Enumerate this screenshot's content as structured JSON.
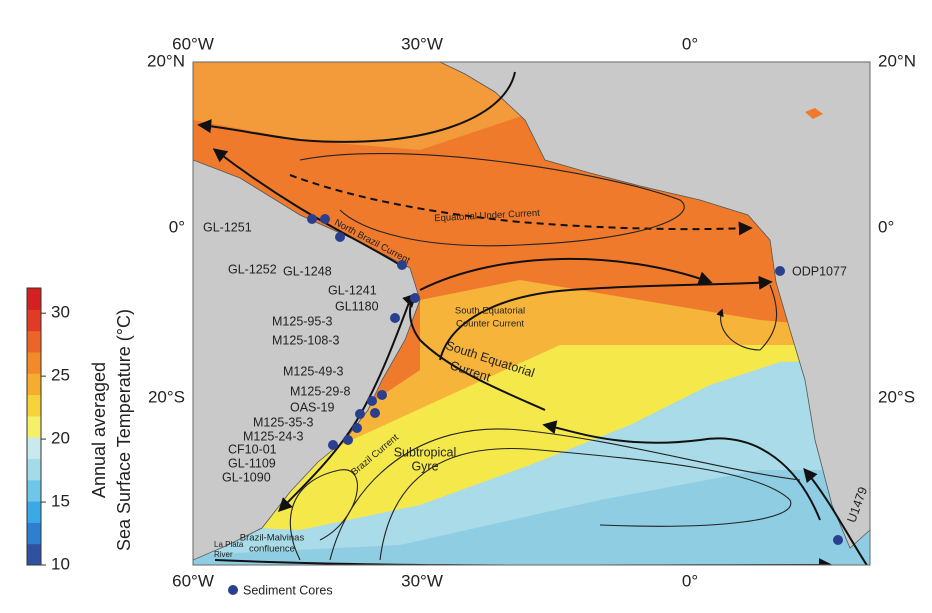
{
  "map": {
    "lon_labels_top": [
      "60°W",
      "30°W",
      "0°"
    ],
    "lon_labels_bottom": [
      "60°W",
      "30°W",
      "0°"
    ],
    "lat_labels_left": [
      "20°N",
      "0°",
      "20°S"
    ],
    "lat_labels_right": [
      "20°N",
      "0°",
      "20°S"
    ]
  },
  "cores": [
    "GL-1251",
    "GL-1252",
    "GL-1248",
    "GL-1241",
    "GL1180",
    "M125-95-3",
    "M125-108-3",
    "M125-49-3",
    "M125-29-8",
    "OAS-19",
    "M125-35-3",
    "M125-24-3",
    "CF10-01",
    "GL-1109",
    "GL-1090",
    "ODP1077",
    "U1479"
  ],
  "currents": {
    "north_brazil": "North Brazil Current",
    "equatorial_under": "Equatorial Under Current",
    "south_equatorial_counter": [
      "South Equatorial",
      "Counter Current"
    ],
    "south_equatorial": [
      "South Equatorial",
      "Current"
    ],
    "brazil": "Brazil Current",
    "subtropical_gyre": [
      "Subtropical",
      "Gyre"
    ],
    "brazil_malvinas": [
      "Brazil-Malvinas",
      "confluence"
    ],
    "la_plata": [
      "La Plata",
      "River"
    ]
  },
  "legend": "Sediment Cores",
  "colorbar": {
    "title": [
      "Annual averaged",
      "Sea Surface Temperature (°C)"
    ],
    "range": [
      10,
      32
    ],
    "ticks": [
      10,
      15,
      20,
      25,
      30
    ]
  }
}
